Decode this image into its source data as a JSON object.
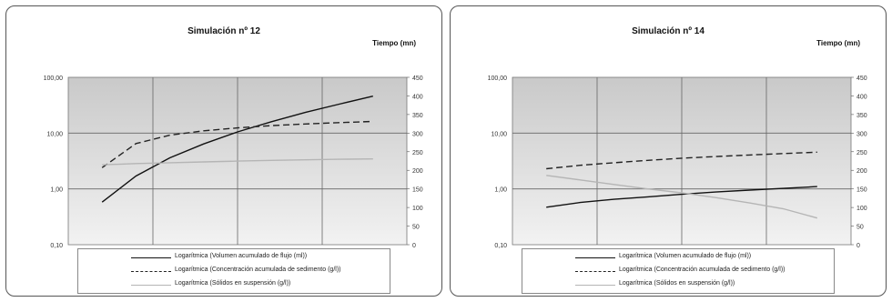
{
  "colors": {
    "plot_bg_top": "#c9c9c9",
    "plot_bg_bottom": "#f2f2f2",
    "volume": "#111111",
    "concentration": "#222222",
    "solids": "#b5b5b5"
  },
  "chart_data": [
    {
      "type": "line",
      "title": "Simulación nº 12",
      "y2label": "Tiempo (mn)",
      "y_scale": "log",
      "ylim": [
        0.1,
        100
      ],
      "y_ticks": [
        "100,00",
        "10,00",
        "1,00",
        "0,10"
      ],
      "y2lim": [
        0,
        450
      ],
      "y2_ticks": [
        "450",
        "400",
        "350",
        "300",
        "250",
        "200",
        "150",
        "100",
        "50",
        "0"
      ],
      "x": [
        0,
        1,
        2,
        3,
        4,
        5,
        6,
        7,
        8
      ],
      "series": [
        {
          "name": "Logarítmica (Volumen acumulado de flujo (ml))",
          "style": "solid",
          "color": "#111111",
          "values": [
            0.58,
            1.7,
            3.6,
            6.4,
            10.5,
            16,
            23.5,
            33,
            46
          ]
        },
        {
          "name": "Logarítmica (Concentración acumulada de sedimento (g/l))",
          "style": "dashed",
          "color": "#222222",
          "values": [
            2.4,
            6.5,
            9.2,
            11,
            12.4,
            13.6,
            14.6,
            15.4,
            16.2
          ]
        },
        {
          "name": "Logarítmica (Sólidos en suspensión (g/l))",
          "style": "solid",
          "color": "#b5b5b5",
          "values": [
            2.7,
            2.85,
            2.95,
            3.05,
            3.15,
            3.25,
            3.32,
            3.4,
            3.45
          ]
        }
      ]
    },
    {
      "type": "line",
      "title": "Simulación nº 14",
      "y2label": "Tiempo (mn)",
      "y_scale": "log",
      "ylim": [
        0.1,
        100
      ],
      "y_ticks": [
        "100,00",
        "10,00",
        "1,00",
        "0,10"
      ],
      "y2lim": [
        0,
        450
      ],
      "y2_ticks": [
        "450",
        "400",
        "350",
        "300",
        "250",
        "200",
        "150",
        "100",
        "50",
        "0"
      ],
      "x": [
        0,
        1,
        2,
        3,
        4,
        5,
        6,
        7,
        8
      ],
      "series": [
        {
          "name": "Logarítmica (Volumen acumulado de flujo (ml))",
          "style": "solid",
          "color": "#111111",
          "values": [
            0.47,
            0.57,
            0.65,
            0.72,
            0.8,
            0.88,
            0.95,
            1.02,
            1.1
          ]
        },
        {
          "name": "Logarítmica (Concentración acumulada de sedimento (g/l))",
          "style": "dashed",
          "color": "#222222",
          "values": [
            2.3,
            2.65,
            2.95,
            3.25,
            3.55,
            3.8,
            4.05,
            4.3,
            4.55
          ]
        },
        {
          "name": "Logarítmica (Sólidos en suspensión (g/l))",
          "style": "solid",
          "color": "#b5b5b5",
          "values": [
            1.75,
            1.45,
            1.2,
            1.0,
            0.85,
            0.7,
            0.56,
            0.44,
            0.3
          ]
        }
      ]
    }
  ]
}
